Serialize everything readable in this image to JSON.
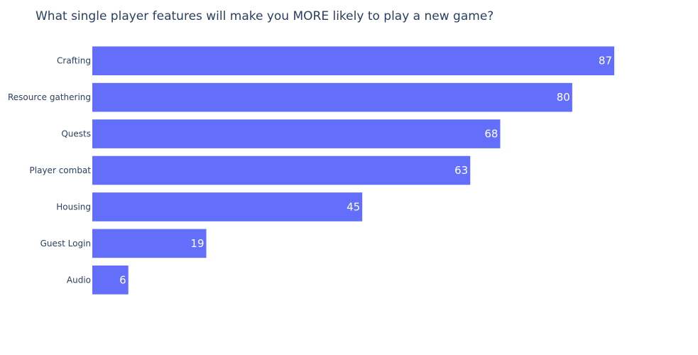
{
  "chart_data": {
    "type": "bar",
    "orientation": "horizontal",
    "title": "What single player features will make you MORE likely to play a new game?",
    "categories": [
      "Crafting",
      "Resource gathering",
      "Quests",
      "Player combat",
      "Housing",
      "Guest Login",
      "Audio"
    ],
    "values": [
      87,
      80,
      68,
      63,
      45,
      19,
      6
    ],
    "data_labels": [
      "87",
      "80",
      "68",
      "63",
      "45",
      "19",
      "6"
    ],
    "xlim": [
      0,
      87
    ],
    "grid": false,
    "bar_color": "#636efa"
  }
}
